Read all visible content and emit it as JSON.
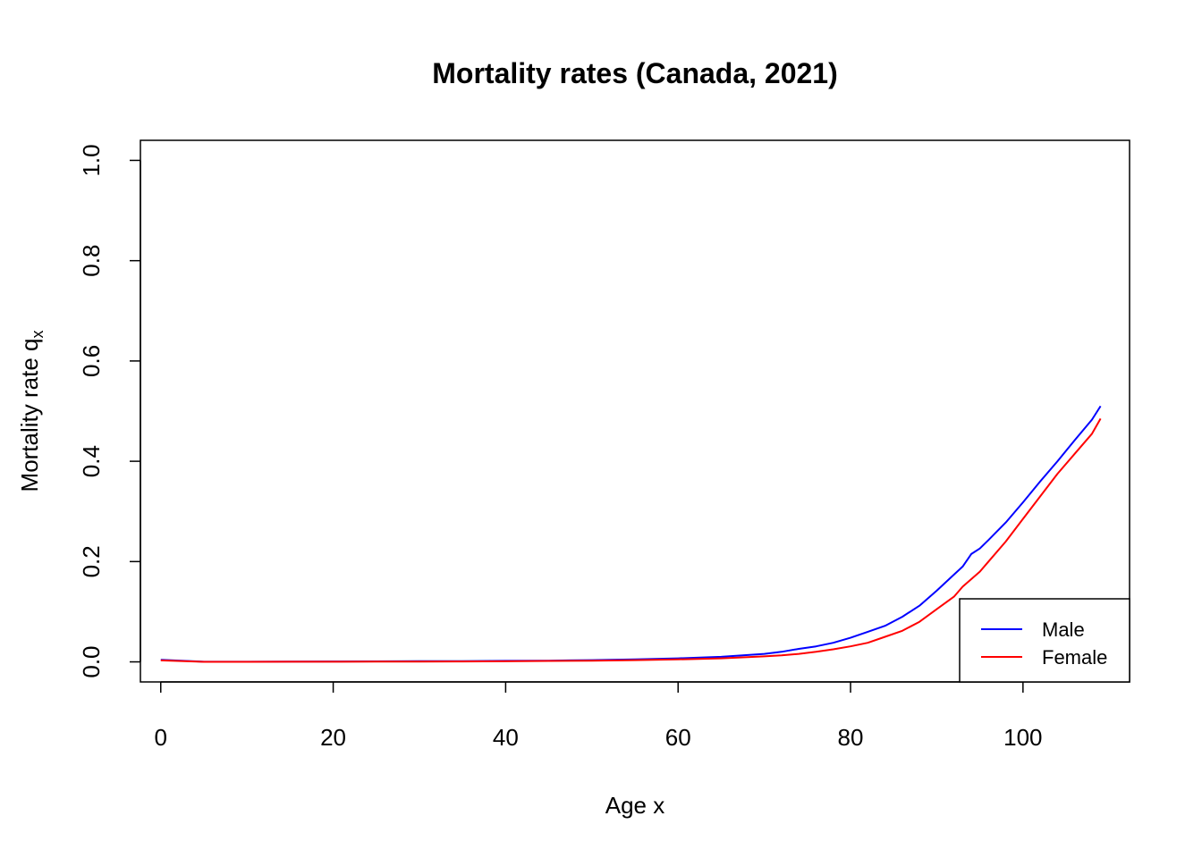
{
  "chart_data": {
    "type": "line",
    "title": "Mortality rates (Canada, 2021)",
    "xlabel": "Age x",
    "ylabel": "Mortality rate q",
    "ylabel_subscript": "x",
    "xlim": [
      -2.36,
      112.36
    ],
    "ylim": [
      -0.04,
      1.04
    ],
    "xticks": [
      "0",
      "20",
      "40",
      "60",
      "80",
      "100"
    ],
    "yticks": [
      "0.0",
      "0.2",
      "0.4",
      "0.6",
      "0.8",
      "1.0"
    ],
    "legend_position": "bottom-right",
    "grid": false,
    "x": [
      0,
      5,
      10,
      15,
      20,
      25,
      30,
      35,
      40,
      45,
      50,
      55,
      60,
      65,
      70,
      72,
      74,
      76,
      78,
      80,
      82,
      84,
      86,
      88,
      90,
      92,
      93,
      94,
      95,
      96,
      98,
      100,
      102,
      104,
      106,
      108,
      109
    ],
    "series": [
      {
        "name": "Male",
        "color": "#0000ff",
        "values": [
          0.004,
          0.0002,
          0.0002,
          0.0004,
          0.0008,
          0.001,
          0.0014,
          0.0016,
          0.002,
          0.0025,
          0.0035,
          0.005,
          0.007,
          0.01,
          0.016,
          0.02,
          0.026,
          0.031,
          0.038,
          0.048,
          0.06,
          0.072,
          0.09,
          0.112,
          0.142,
          0.174,
          0.19,
          0.215,
          0.226,
          0.243,
          0.278,
          0.318,
          0.36,
          0.4,
          0.442,
          0.483,
          0.51
        ]
      },
      {
        "name": "Female",
        "color": "#ff0000",
        "values": [
          0.003,
          0.0001,
          0.0001,
          0.0002,
          0.0003,
          0.0004,
          0.0006,
          0.0008,
          0.0012,
          0.0018,
          0.0025,
          0.0035,
          0.005,
          0.007,
          0.011,
          0.013,
          0.016,
          0.02,
          0.025,
          0.031,
          0.038,
          0.05,
          0.062,
          0.08,
          0.105,
          0.13,
          0.15,
          0.165,
          0.18,
          0.2,
          0.24,
          0.285,
          0.33,
          0.375,
          0.415,
          0.455,
          0.485
        ]
      }
    ]
  }
}
